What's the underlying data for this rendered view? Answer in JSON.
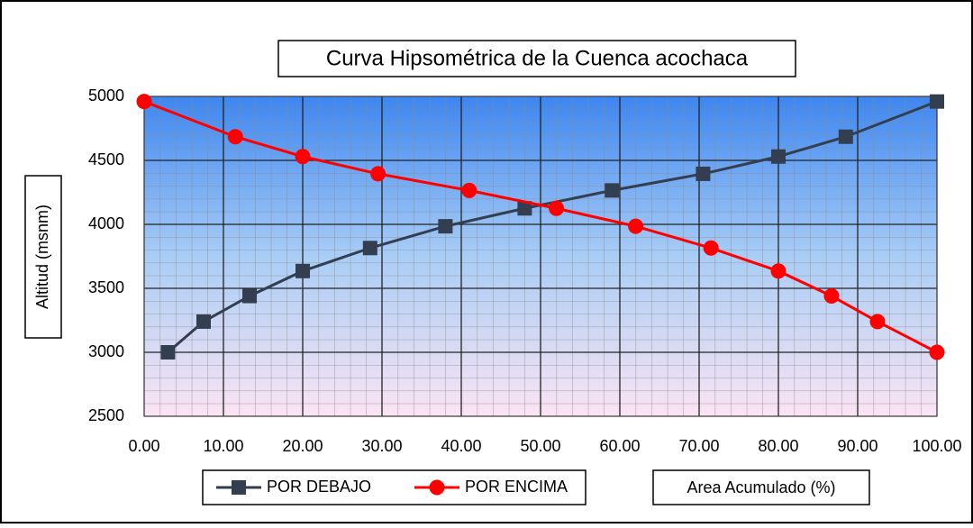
{
  "chart_data": {
    "type": "line",
    "title": "Curva Hipsométrica de la Cuenca acochaca",
    "x_label": "Area Acumulado (%)",
    "y_label": "Altitud (msnm)",
    "xlim": [
      0,
      100
    ],
    "xticks": [
      {
        "value": 0,
        "label": "0.00"
      },
      {
        "value": 10,
        "label": "10.00"
      },
      {
        "value": 20,
        "label": "20.00"
      },
      {
        "value": 30,
        "label": "30.00"
      },
      {
        "value": 40,
        "label": "40.00"
      },
      {
        "value": 50,
        "label": "50.00"
      },
      {
        "value": 60,
        "label": "60.00"
      },
      {
        "value": 70,
        "label": "70.00"
      },
      {
        "value": 80,
        "label": "80.00"
      },
      {
        "value": 90,
        "label": "90.00"
      },
      {
        "value": 100,
        "label": "100.00"
      }
    ],
    "ylim": [
      2500,
      5000
    ],
    "yticks": [
      2500,
      3000,
      3500,
      4000,
      4500,
      5000
    ],
    "grid": true,
    "legend": "bottom",
    "series": [
      {
        "name": "POR DEBAJO",
        "color": "#333f50",
        "marker": "square",
        "x": [
          3,
          7.5,
          13.3,
          20,
          28.5,
          38,
          48,
          59,
          70.5,
          80,
          88.5,
          100
        ],
        "values": [
          3000,
          3240,
          3440,
          3635,
          3815,
          3985,
          4125,
          4265,
          4395,
          4530,
          4685,
          4960
        ]
      },
      {
        "name": "POR ENCIMA",
        "color": "#ff0000",
        "marker": "circle",
        "x": [
          0,
          11.5,
          20,
          29.5,
          41,
          52,
          62,
          71.5,
          80,
          86.7,
          92.5,
          100
        ],
        "values": [
          4960,
          4685,
          4530,
          4395,
          4265,
          4125,
          3985,
          3815,
          3635,
          3440,
          3240,
          3000
        ]
      }
    ]
  }
}
